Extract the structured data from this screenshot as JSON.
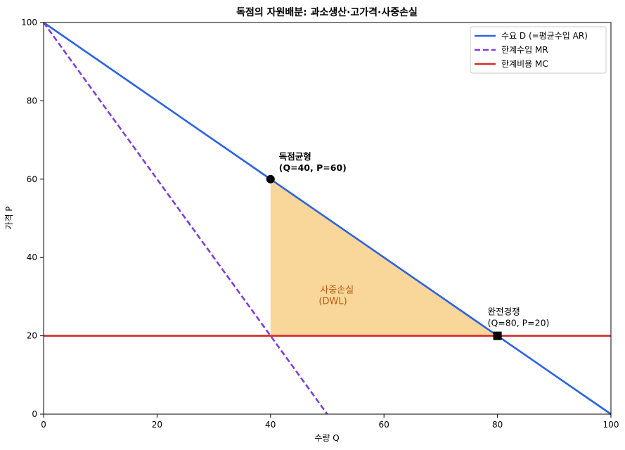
{
  "chart_data": {
    "type": "line",
    "title": "독점의 자원배분: 과소생산·고가격·사중손실",
    "xlabel": "수량 Q",
    "ylabel": "가격 P",
    "xlim": [
      0,
      100
    ],
    "ylim": [
      0,
      100
    ],
    "x_ticks": [
      0,
      20,
      40,
      60,
      80,
      100
    ],
    "y_ticks": [
      0,
      20,
      40,
      60,
      80,
      100
    ],
    "grid": false,
    "legend_position": "top-right",
    "series": [
      {
        "name": "수요 D (=평균수입 AR)",
        "style": "solid",
        "color": "#2b62e3",
        "x": [
          0,
          100
        ],
        "y": [
          100,
          0
        ]
      },
      {
        "name": "한계수입 MR",
        "style": "dashed",
        "color": "#7e3fd9",
        "x": [
          0,
          50
        ],
        "y": [
          100,
          0
        ]
      },
      {
        "name": "한계비용 MC",
        "style": "solid",
        "color": "#d42a2a",
        "x": [
          0,
          100
        ],
        "y": [
          20,
          20
        ]
      }
    ],
    "shaded_region": {
      "label_line1": "사중손실",
      "label_line2": "(DWL)",
      "color": "#f9d79b",
      "label_color": "#b8590f",
      "vertices": [
        [
          40,
          60
        ],
        [
          40,
          20
        ],
        [
          80,
          20
        ]
      ]
    },
    "points": [
      {
        "name": "monopoly",
        "x": 40,
        "y": 60,
        "marker": "circle",
        "label_line1": "독점균형",
        "label_line2": "(Q=40, P=60)",
        "bold": true
      },
      {
        "name": "competitive",
        "x": 80,
        "y": 20,
        "marker": "square",
        "label_line1": "완전경쟁",
        "label_line2": "(Q=80, P=20)",
        "bold": false
      }
    ]
  }
}
